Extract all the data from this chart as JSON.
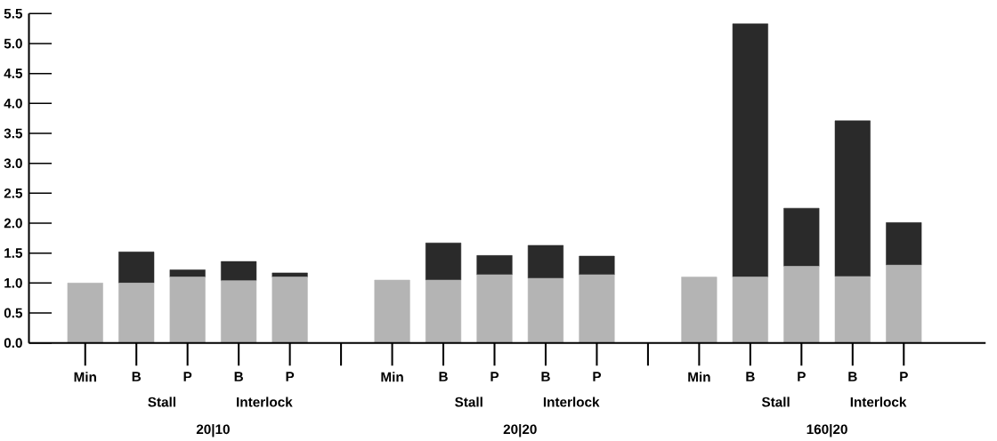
{
  "chart_data": {
    "type": "bar",
    "stacked": true,
    "categories": [
      "Min",
      "B",
      "P",
      "B",
      "P",
      null,
      "Min",
      "B",
      "P",
      "B",
      "P",
      null,
      "Min",
      "B",
      "P",
      "B",
      "P"
    ],
    "series": [
      {
        "color": "#b4b4b4",
        "values": [
          1.0,
          1.0,
          1.1,
          1.04,
          1.1,
          null,
          1.05,
          1.05,
          1.14,
          1.08,
          1.14,
          null,
          1.1,
          1.1,
          1.28,
          1.11,
          1.3
        ]
      },
      {
        "color": "#2a2a2a",
        "values": [
          null,
          0.52,
          0.12,
          0.32,
          0.07,
          null,
          null,
          0.62,
          0.32,
          0.55,
          0.31,
          null,
          null,
          4.23,
          0.97,
          2.6,
          0.71
        ]
      }
    ],
    "ylim": [
      0,
      5.5
    ],
    "yticks": [
      {
        "value": 0,
        "label": "0.0"
      },
      0.5,
      {
        "value": 1,
        "label": "1.0"
      },
      1.5,
      {
        "value": 2,
        "label": "2.0"
      },
      2.5,
      {
        "value": 3,
        "label": "3.0"
      },
      3.5,
      {
        "value": 4,
        "label": "4.0"
      },
      4.5,
      {
        "value": 5,
        "label": "5.0"
      },
      5.5
    ],
    "annotations": [
      "Stall",
      "Interlock",
      "20|10",
      "Stall",
      "Interlock",
      "20|20",
      "Stall",
      "Interlock",
      "160|20"
    ],
    "grid": false
  }
}
